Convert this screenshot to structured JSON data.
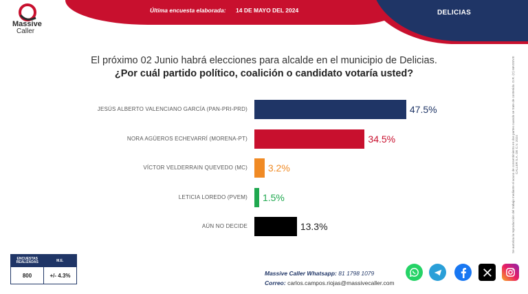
{
  "brand": {
    "name": "Massive",
    "sub": "Caller"
  },
  "header": {
    "survey_label": "Última encuesta elaborada:",
    "survey_date": "14 DE MAYO DEL 2024",
    "municipality": "DELICIAS"
  },
  "question": {
    "line1": "El próximo 02 Junio habrá elecciones para alcalde en el municipio de Delicias.",
    "line2": "¿Por cuál partido político, coalición o candidato votaría usted?"
  },
  "chart_data": {
    "type": "bar",
    "orientation": "horizontal",
    "title": "",
    "xlabel": "",
    "ylabel": "",
    "categories": [
      "JESÚS ALBERTO VALENCIANO GARCÍA (PAN-PRI-PRD)",
      "NORA AGÜEROS ECHEVARRÍ (MORENA-PT)",
      "VÍCTOR VELDERRAIN QUEVEDO (MC)",
      "LETICIA LOREDO (PVEM)",
      "AÚN NO DECIDE"
    ],
    "values": [
      47.5,
      34.5,
      3.2,
      1.5,
      13.3
    ],
    "value_labels": [
      "47.5%",
      "34.5%",
      "3.2%",
      "1.5%",
      "13.3%"
    ],
    "colors": [
      "#1f3566",
      "#c8102e",
      "#f08a24",
      "#1fa84f",
      "#000000"
    ]
  },
  "side_note": "Se autoriza la reproducción del trabajo mediante el acuso de consentimiento en dos partes cuando se trate de contenido. D.R. (C) MASSIVE CALLER S.A. DE C.V. 2024",
  "sample_table": {
    "headers": [
      "ENCUESTAS REALIZADAS",
      "M.E."
    ],
    "values": [
      "800",
      "+/- 4.3%"
    ]
  },
  "contact": {
    "whatsapp_label": "Massive Caller Whatsapp:",
    "whatsapp_number": "81 1798 1079",
    "email_label": "Correo:",
    "email": "carlos.campos.riojas@massivecaller.com"
  },
  "social": [
    "whatsapp-icon",
    "telegram-icon",
    "facebook-icon",
    "x-icon",
    "instagram-icon"
  ]
}
